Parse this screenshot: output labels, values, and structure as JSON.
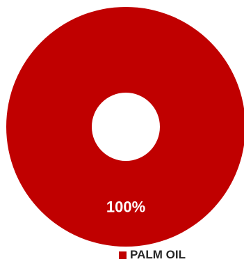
{
  "chart_data": {
    "type": "pie",
    "variant": "donut",
    "categories": [
      "PALM OIL"
    ],
    "values": [
      100
    ],
    "value_labels": [
      "100%"
    ],
    "colors": [
      "#c00000"
    ],
    "legend_position": "bottom-right",
    "title": ""
  }
}
